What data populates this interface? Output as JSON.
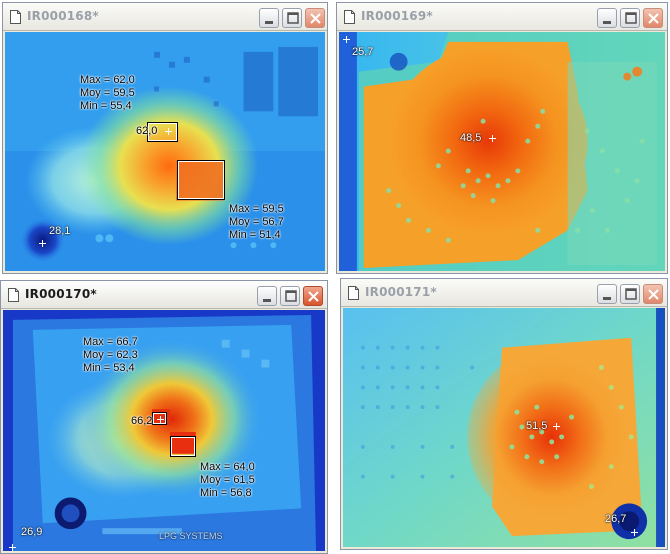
{
  "windows": [
    {
      "id": "w1",
      "title": "IR000168*",
      "active": false,
      "zones": [
        {
          "max": "Max = 62,0",
          "moy": "Moy = 59,5",
          "min": "Min = 55,4"
        },
        {
          "max": "Max = 59,5",
          "moy": "Moy = 56,7",
          "min": "Min = 51,4"
        }
      ],
      "points": [
        "62,0",
        "28,1"
      ]
    },
    {
      "id": "w2",
      "title": "IR000169*",
      "active": false,
      "points": [
        "25,7",
        "48,5"
      ]
    },
    {
      "id": "w3",
      "title": "IR000170*",
      "active": true,
      "zones": [
        {
          "max": "Max = 66,7",
          "moy": "Moy = 62,3",
          "min": "Min = 53,4"
        },
        {
          "max": "Max = 64,0",
          "moy": "Moy = 61,5",
          "min": "Min = 56,8"
        }
      ],
      "points": [
        "66,2",
        "26,9"
      ],
      "board_text": "LPG SYSTEMS"
    },
    {
      "id": "w4",
      "title": "IR000171*",
      "active": false,
      "points": [
        "51,5",
        "26,7"
      ]
    }
  ],
  "palette": {
    "cold": "#1030c8",
    "cool": "#2aa8f0",
    "mid": "#70e090",
    "warm": "#f0c030",
    "hot": "#e85010"
  }
}
